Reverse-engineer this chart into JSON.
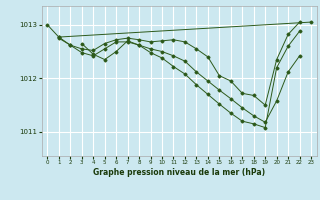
{
  "title": "Graphe pression niveau de la mer (hPa)",
  "background_color": "#cce8f0",
  "grid_color": "#ffffff",
  "line_color": "#2d5a1b",
  "marker_color": "#2d5a1b",
  "ylabel_ticks": [
    1011,
    1012,
    1013
  ],
  "xlim": [
    -0.5,
    23.5
  ],
  "ylim": [
    1010.55,
    1013.35
  ],
  "series": [
    {
      "x": [
        0,
        1,
        23
      ],
      "y": [
        1013.0,
        1012.77,
        1013.05
      ]
    },
    {
      "x": [
        1,
        2,
        3,
        4,
        5,
        6,
        7,
        8,
        9,
        10,
        11,
        12,
        13,
        14,
        15,
        16,
        17,
        18,
        19,
        20,
        21,
        22
      ],
      "y": [
        1012.77,
        1012.62,
        1012.55,
        1012.52,
        1012.65,
        1012.72,
        1012.75,
        1012.72,
        1012.68,
        1012.7,
        1012.72,
        1012.68,
        1012.55,
        1012.4,
        1012.05,
        1011.95,
        1011.72,
        1011.68,
        1011.5,
        1012.35,
        1012.82,
        1013.05
      ]
    },
    {
      "x": [
        1,
        2,
        3,
        4,
        5,
        6,
        7,
        8,
        9,
        10,
        11,
        12,
        13,
        14,
        15,
        16,
        17,
        18,
        19,
        20,
        21,
        22
      ],
      "y": [
        1012.75,
        1012.62,
        1012.48,
        1012.42,
        1012.55,
        1012.68,
        1012.68,
        1012.62,
        1012.55,
        1012.5,
        1012.42,
        1012.32,
        1012.12,
        1011.95,
        1011.78,
        1011.62,
        1011.45,
        1011.3,
        1011.18,
        1011.58,
        1012.12,
        1012.42
      ]
    },
    {
      "x": [
        3,
        4,
        5,
        6,
        7,
        8,
        9,
        10,
        11,
        12,
        13,
        14,
        15,
        16,
        17,
        18,
        19,
        20,
        21,
        22
      ],
      "y": [
        1012.65,
        1012.45,
        1012.35,
        1012.5,
        1012.7,
        1012.62,
        1012.48,
        1012.38,
        1012.22,
        1012.08,
        1011.88,
        1011.7,
        1011.52,
        1011.35,
        1011.2,
        1011.15,
        1011.08,
        1012.2,
        1012.6,
        1012.88
      ]
    }
  ]
}
